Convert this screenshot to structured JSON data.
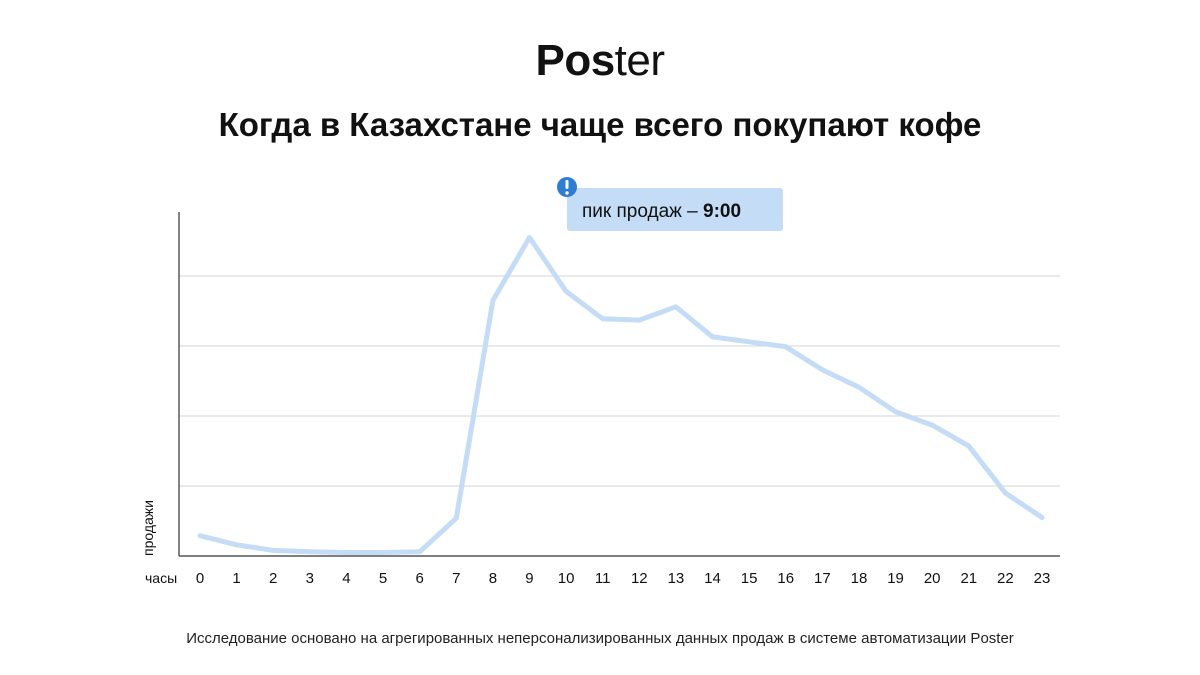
{
  "header": {
    "logo_bold": "Pos",
    "logo_light": "ter",
    "title": "Когда в Казахстане чаще всего покупают кофе"
  },
  "chart_data": {
    "type": "line",
    "xlabel": "часы",
    "ylabel": "продажи",
    "x": [
      0,
      1,
      2,
      3,
      4,
      5,
      6,
      7,
      8,
      9,
      10,
      11,
      12,
      13,
      14,
      15,
      16,
      17,
      18,
      19,
      20,
      21,
      22,
      23
    ],
    "series": [
      {
        "values": [
          29,
          16,
          8,
          6,
          5,
          5,
          6,
          54,
          365,
          455,
          378,
          339,
          337,
          356,
          313,
          306,
          299,
          266,
          241,
          206,
          187,
          157,
          90,
          55
        ]
      }
    ],
    "ylim": [
      0,
      500
    ],
    "y_gridlines": [
      100,
      200,
      300,
      400
    ],
    "show_y_tick_labels": false,
    "grid": true,
    "line_color": "#c4dcf5",
    "annotation": {
      "x": 9,
      "text_prefix": "пик продаж – ",
      "text_value": "9:00",
      "icon": "exclamation-circle-icon",
      "icon_color": "#2f7dd3",
      "box_color": "#c4dcf5"
    }
  },
  "footer": {
    "note": "Исследование основано на агрегированных неперсонализированных данных продаж в системе автоматизации Poster"
  }
}
